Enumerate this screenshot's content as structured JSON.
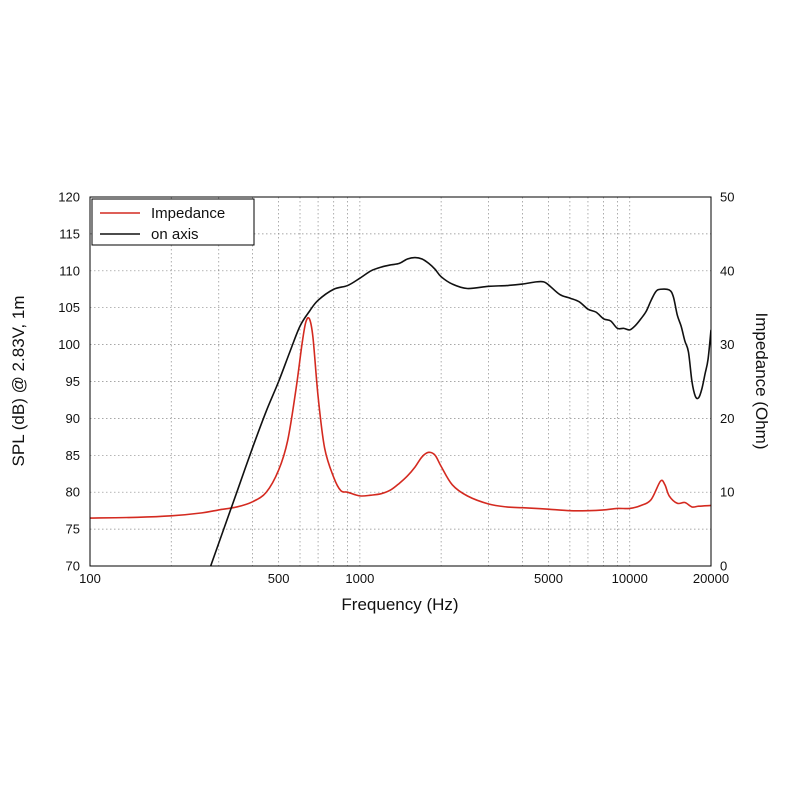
{
  "chart_data": {
    "type": "line",
    "xlabel": "Frequency (Hz)",
    "ylabel": "SPL (dB) @ 2.83V, 1m",
    "y2label": "Impedance (Ohm)",
    "xscale": "log",
    "xlim": [
      100,
      20000
    ],
    "ylim": [
      70,
      120
    ],
    "y2lim": [
      0,
      50
    ],
    "grid": true,
    "legend_position": "top-left",
    "x_ticks": [
      {
        "value": 100,
        "label": "100"
      },
      {
        "value": 500,
        "label": "500"
      },
      {
        "value": 1000,
        "label": "1000"
      },
      {
        "value": 5000,
        "label": "5000"
      },
      {
        "value": 10000,
        "label": "10000"
      },
      {
        "value": 20000,
        "label": "20000"
      }
    ],
    "y_ticks": [
      {
        "value": 70,
        "label": "70"
      },
      {
        "value": 75,
        "label": "75"
      },
      {
        "value": 80,
        "label": "80"
      },
      {
        "value": 85,
        "label": "85"
      },
      {
        "value": 90,
        "label": "90"
      },
      {
        "value": 95,
        "label": "95"
      },
      {
        "value": 100,
        "label": "100"
      },
      {
        "value": 105,
        "label": "105"
      },
      {
        "value": 110,
        "label": "110"
      },
      {
        "value": 115,
        "label": "115"
      },
      {
        "value": 120,
        "label": "120"
      }
    ],
    "y2_ticks": [
      {
        "value": 0,
        "label": "0"
      },
      {
        "value": 10,
        "label": "10"
      },
      {
        "value": 20,
        "label": "20"
      },
      {
        "value": 30,
        "label": "30"
      },
      {
        "value": 40,
        "label": "40"
      },
      {
        "value": 50,
        "label": "50"
      }
    ],
    "series": [
      {
        "name": "Impedance",
        "color": "#d42a20",
        "axis": "right",
        "x": [
          100,
          150,
          200,
          260,
          300,
          350,
          400,
          450,
          500,
          540,
          580,
          610,
          630,
          650,
          670,
          700,
          740,
          800,
          850,
          900,
          1000,
          1100,
          1200,
          1300,
          1400,
          1500,
          1600,
          1700,
          1800,
          1900,
          2000,
          2200,
          2500,
          3000,
          3500,
          4000,
          4500,
          5000,
          6000,
          7000,
          8000,
          9000,
          10000,
          11000,
          12000,
          13000,
          13500,
          14000,
          15000,
          16000,
          17000,
          18000,
          20000
        ],
        "values": [
          6.5,
          6.6,
          6.8,
          7.2,
          7.6,
          8.0,
          8.7,
          10.0,
          13.0,
          17.0,
          24.0,
          30.0,
          33.0,
          33.5,
          31.0,
          23.0,
          16.0,
          12.0,
          10.2,
          10.0,
          9.5,
          9.6,
          9.8,
          10.3,
          11.2,
          12.2,
          13.4,
          14.8,
          15.4,
          15.0,
          13.5,
          11.0,
          9.5,
          8.4,
          8.0,
          7.9,
          7.8,
          7.7,
          7.5,
          7.5,
          7.6,
          7.8,
          7.8,
          8.2,
          9.0,
          11.5,
          11.0,
          9.5,
          8.5,
          8.6,
          8.0,
          8.1,
          8.2
        ]
      },
      {
        "name": "on axis",
        "color": "#111111",
        "axis": "left",
        "x": [
          280,
          320,
          350,
          400,
          450,
          500,
          550,
          600,
          650,
          700,
          800,
          900,
          1000,
          1100,
          1200,
          1300,
          1400,
          1500,
          1600,
          1700,
          1800,
          1900,
          2000,
          2200,
          2500,
          3000,
          3500,
          4000,
          4500,
          4800,
          5000,
          5500,
          6000,
          6500,
          7000,
          7500,
          8000,
          8500,
          9000,
          9500,
          10000,
          10500,
          11000,
          11500,
          12000,
          12500,
          13000,
          14000,
          14500,
          15000,
          15500,
          16000,
          16500,
          17000,
          17500,
          18000,
          18500,
          19000,
          19500,
          20000
        ],
        "values": [
          70.0,
          76.0,
          80.0,
          86.0,
          91.0,
          95.0,
          99.0,
          102.5,
          104.5,
          106.0,
          107.5,
          108.0,
          109.0,
          110.0,
          110.5,
          110.8,
          111.0,
          111.6,
          111.8,
          111.6,
          111.0,
          110.2,
          109.2,
          108.2,
          107.6,
          107.9,
          108.0,
          108.2,
          108.5,
          108.5,
          108.1,
          106.8,
          106.3,
          105.8,
          104.8,
          104.4,
          103.5,
          103.2,
          102.2,
          102.2,
          102.0,
          102.6,
          103.5,
          104.5,
          106.0,
          107.2,
          107.5,
          107.4,
          106.5,
          104.0,
          102.5,
          100.5,
          99.0,
          95.0,
          93.0,
          92.8,
          94.0,
          96.0,
          98.0,
          102.0
        ]
      }
    ]
  }
}
